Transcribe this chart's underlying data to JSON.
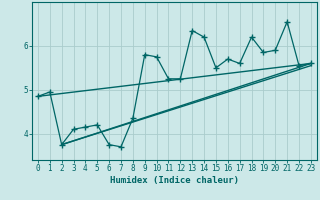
{
  "title": "",
  "xlabel": "Humidex (Indice chaleur)",
  "ylabel": "",
  "bg_color": "#cce8e8",
  "line_color": "#006666",
  "grid_color": "#aacccc",
  "x_data": [
    0,
    1,
    2,
    3,
    4,
    5,
    6,
    7,
    8,
    9,
    10,
    11,
    12,
    13,
    14,
    15,
    16,
    17,
    18,
    19,
    20,
    21,
    22,
    23
  ],
  "y_main": [
    4.85,
    4.95,
    3.75,
    4.1,
    4.15,
    4.2,
    3.75,
    3.7,
    4.35,
    5.8,
    5.75,
    5.25,
    5.25,
    6.35,
    6.2,
    5.5,
    5.7,
    5.6,
    6.2,
    5.85,
    5.9,
    6.55,
    5.55,
    5.6
  ],
  "trend1_x": [
    0,
    23
  ],
  "trend1_y": [
    4.85,
    5.6
  ],
  "trend2_x": [
    2,
    23
  ],
  "trend2_y": [
    3.75,
    5.6
  ],
  "trend3_x": [
    2,
    23
  ],
  "trend3_y": [
    3.75,
    5.55
  ],
  "xlim": [
    -0.5,
    23.5
  ],
  "ylim": [
    3.4,
    7.0
  ],
  "yticks": [
    4,
    5,
    6
  ],
  "xticks": [
    0,
    1,
    2,
    3,
    4,
    5,
    6,
    7,
    8,
    9,
    10,
    11,
    12,
    13,
    14,
    15,
    16,
    17,
    18,
    19,
    20,
    21,
    22,
    23
  ],
  "label_fontsize": 6.5,
  "tick_fontsize": 5.5
}
